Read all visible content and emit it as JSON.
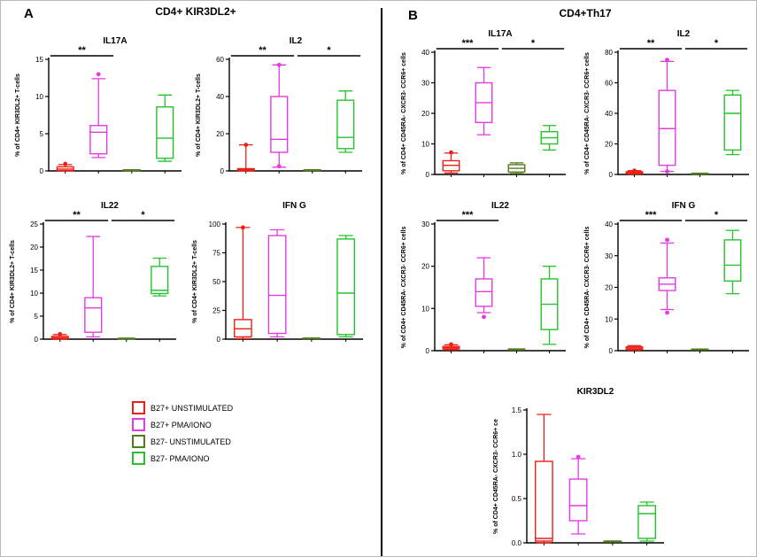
{
  "panels": {
    "a": {
      "letter": "A",
      "title": "CD4+ KIR3DL2+"
    },
    "b": {
      "letter": "B",
      "title": "CD4+Th17"
    }
  },
  "legend": {
    "items": [
      {
        "label": "B27+ UNSTIMULATED",
        "color": "#ed2015"
      },
      {
        "label": "B27+ PMA/IONO",
        "color": "#e43ae4"
      },
      {
        "label": "B27- UNSTIMULATED",
        "color": "#527d1e"
      },
      {
        "label": "B27- PMA/IONO",
        "color": "#25c32b"
      }
    ]
  },
  "chart_data": [
    {
      "type": "box",
      "panel": "A",
      "title": "IL17A",
      "ylabel": "% of CD4+ KIR3DL2+ T-cells",
      "ylim": [
        0,
        15
      ],
      "yticks": [
        {
          "v": 0,
          "l": "0"
        },
        {
          "v": 5,
          "l": "5"
        },
        {
          "v": 10,
          "l": "10"
        },
        {
          "v": 15,
          "l": "15"
        }
      ],
      "groups": [
        "B27+ UNSTIMULATED",
        "B27+ PMA/IONO",
        "B27- UNSTIMULATED",
        "B27- PMA/IONO"
      ],
      "boxes": [
        {
          "low": 0,
          "q1": 0.05,
          "med": 0.25,
          "q3": 0.55,
          "high": 0.85,
          "outliers": [
            0.95
          ]
        },
        {
          "low": 1.8,
          "q1": 2.3,
          "med": 5.2,
          "q3": 6.1,
          "high": 12.4,
          "outliers": [
            13.0
          ]
        },
        {
          "low": 0.05,
          "q1": 0.05,
          "med": 0.1,
          "q3": 0.15,
          "high": 0.15,
          "outliers": []
        },
        {
          "low": 1.3,
          "q1": 1.7,
          "med": 4.4,
          "q3": 8.6,
          "high": 10.2,
          "outliers": []
        }
      ],
      "sig": [
        {
          "a": 0,
          "b": 1,
          "label": "**"
        }
      ]
    },
    {
      "type": "box",
      "panel": "A",
      "title": "IL2",
      "ylabel": "% of CD4+ KIR3DL2+ T-cells",
      "ylim": [
        0,
        60
      ],
      "yticks": [
        {
          "v": 0,
          "l": "0"
        },
        {
          "v": 20,
          "l": "20"
        },
        {
          "v": 40,
          "l": "40"
        },
        {
          "v": 60,
          "l": "60"
        }
      ],
      "groups": [
        "B27+ UNSTIMULATED",
        "B27+ PMA/IONO",
        "B27- UNSTIMULATED",
        "B27- PMA/IONO"
      ],
      "boxes": [
        {
          "low": 0,
          "q1": 0.2,
          "med": 0.6,
          "q3": 1.2,
          "high": 14,
          "outliers": [
            14
          ]
        },
        {
          "low": 2,
          "q1": 10,
          "med": 17,
          "q3": 40,
          "high": 57,
          "outliers": [
            57,
            2.5
          ]
        },
        {
          "low": 0.3,
          "q1": 0.3,
          "med": 0.4,
          "q3": 0.6,
          "high": 0.6,
          "outliers": []
        },
        {
          "low": 10,
          "q1": 12,
          "med": 18,
          "q3": 38,
          "high": 43,
          "outliers": []
        }
      ],
      "sig": [
        {
          "a": 0,
          "b": 1,
          "label": "**"
        },
        {
          "a": 2,
          "b": 3,
          "label": "*"
        }
      ]
    },
    {
      "type": "box",
      "panel": "A",
      "title": "IL22",
      "ylabel": "% of CD4+ KIR3DL2+ T-cells",
      "ylim": [
        0,
        25
      ],
      "yticks": [
        {
          "v": 0,
          "l": "0"
        },
        {
          "v": 5,
          "l": "5"
        },
        {
          "v": 10,
          "l": "10"
        },
        {
          "v": 15,
          "l": "15"
        },
        {
          "v": 20,
          "l": "20"
        },
        {
          "v": 25,
          "l": "25"
        }
      ],
      "groups": [
        "B27+ UNSTIMULATED",
        "B27+ PMA/IONO",
        "B27- UNSTIMULATED",
        "B27- PMA/IONO"
      ],
      "boxes": [
        {
          "low": 0,
          "q1": 0.1,
          "med": 0.3,
          "q3": 0.6,
          "high": 1.0,
          "outliers": [
            1.1
          ]
        },
        {
          "low": 0.5,
          "q1": 1.5,
          "med": 6.8,
          "q3": 9.0,
          "high": 22.3,
          "outliers": []
        },
        {
          "low": 0.1,
          "q1": 0.1,
          "med": 0.15,
          "q3": 0.2,
          "high": 0.2,
          "outliers": []
        },
        {
          "low": 9.4,
          "q1": 9.9,
          "med": 10.6,
          "q3": 15.8,
          "high": 17.6,
          "outliers": []
        }
      ],
      "sig": [
        {
          "a": 0,
          "b": 1,
          "label": "**"
        },
        {
          "a": 2,
          "b": 3,
          "label": "*"
        }
      ]
    },
    {
      "type": "box",
      "panel": "A",
      "title": "IFN G",
      "ylabel": "% of CD4+ KIR3DL2+ T-cells",
      "ylim": [
        0,
        100
      ],
      "yticks": [
        {
          "v": 0,
          "l": "0"
        },
        {
          "v": 25,
          "l": "25"
        },
        {
          "v": 50,
          "l": "50"
        },
        {
          "v": 75,
          "l": "75"
        },
        {
          "v": 100,
          "l": "100"
        }
      ],
      "groups": [
        "B27+ UNSTIMULATED",
        "B27+ PMA/IONO",
        "B27- UNSTIMULATED",
        "B27- PMA/IONO"
      ],
      "boxes": [
        {
          "low": 0.5,
          "q1": 2,
          "med": 9,
          "q3": 17,
          "high": 97,
          "outliers": [
            97
          ]
        },
        {
          "low": 2,
          "q1": 5,
          "med": 38,
          "q3": 90,
          "high": 95,
          "outliers": []
        },
        {
          "low": 0.5,
          "q1": 0.5,
          "med": 0.8,
          "q3": 1,
          "high": 1,
          "outliers": []
        },
        {
          "low": 2,
          "q1": 4,
          "med": 40,
          "q3": 87,
          "high": 90,
          "outliers": []
        }
      ],
      "sig": []
    },
    {
      "type": "box",
      "panel": "B",
      "title": "IL17A",
      "ylabel": "% of CD4+ CD45RA- CXCR3- CCR6+ cells",
      "ylim": [
        0,
        40
      ],
      "yticks": [
        {
          "v": 0,
          "l": "0"
        },
        {
          "v": 10,
          "l": "10"
        },
        {
          "v": 20,
          "l": "20"
        },
        {
          "v": 30,
          "l": "30"
        },
        {
          "v": 40,
          "l": "40"
        }
      ],
      "groups": [
        "B27+ UNSTIMULATED",
        "B27+ PMA/IONO",
        "B27- UNSTIMULATED",
        "B27- PMA/IONO"
      ],
      "boxes": [
        {
          "low": 0.5,
          "q1": 1.2,
          "med": 3.0,
          "q3": 4.5,
          "high": 7,
          "outliers": [
            7.2
          ]
        },
        {
          "low": 13,
          "q1": 17,
          "med": 23.5,
          "q3": 30,
          "high": 35,
          "outliers": []
        },
        {
          "low": 0.3,
          "q1": 0.8,
          "med": 2.0,
          "q3": 3.2,
          "high": 3.8,
          "outliers": []
        },
        {
          "low": 8,
          "q1": 10,
          "med": 12,
          "q3": 14,
          "high": 16,
          "outliers": []
        }
      ],
      "sig": [
        {
          "a": 0,
          "b": 1,
          "label": "***"
        },
        {
          "a": 2,
          "b": 3,
          "label": "*"
        }
      ]
    },
    {
      "type": "box",
      "panel": "B",
      "title": "IL2",
      "ylabel": "% of CD4+ CD45RA- CXCR3- CCR6+ cells",
      "ylim": [
        0,
        80
      ],
      "yticks": [
        {
          "v": 0,
          "l": "0"
        },
        {
          "v": 20,
          "l": "20"
        },
        {
          "v": 40,
          "l": "40"
        },
        {
          "v": 60,
          "l": "60"
        },
        {
          "v": 80,
          "l": "80"
        }
      ],
      "groups": [
        "B27+ UNSTIMULATED",
        "B27+ PMA/IONO",
        "B27- UNSTIMULATED",
        "B27- PMA/IONO"
      ],
      "boxes": [
        {
          "low": 0.3,
          "q1": 0.6,
          "med": 1.2,
          "q3": 1.8,
          "high": 2.5,
          "outliers": [
            2.5
          ]
        },
        {
          "low": 2,
          "q1": 6,
          "med": 30,
          "q3": 55,
          "high": 74,
          "outliers": [
            75,
            2
          ]
        },
        {
          "low": 0.4,
          "q1": 0.4,
          "med": 0.6,
          "q3": 0.8,
          "high": 0.8,
          "outliers": []
        },
        {
          "low": 13,
          "q1": 16,
          "med": 40,
          "q3": 52,
          "high": 55,
          "outliers": []
        }
      ],
      "sig": [
        {
          "a": 0,
          "b": 1,
          "label": "**"
        },
        {
          "a": 2,
          "b": 3,
          "label": "*"
        }
      ]
    },
    {
      "type": "box",
      "panel": "B",
      "title": "IL22",
      "ylabel": "% of CD4+ CD45RA- CXCR3- CCR6+ cells",
      "ylim": [
        0,
        30
      ],
      "yticks": [
        {
          "v": 0,
          "l": "0"
        },
        {
          "v": 10,
          "l": "10"
        },
        {
          "v": 20,
          "l": "20"
        },
        {
          "v": 30,
          "l": "30"
        }
      ],
      "groups": [
        "B27+ UNSTIMULATED",
        "B27+ PMA/IONO",
        "B27- UNSTIMULATED",
        "B27- PMA/IONO"
      ],
      "boxes": [
        {
          "low": 0.2,
          "q1": 0.4,
          "med": 0.7,
          "q3": 1.0,
          "high": 1.4,
          "outliers": [
            1.5
          ]
        },
        {
          "low": 9,
          "q1": 10.5,
          "med": 14,
          "q3": 17,
          "high": 22,
          "outliers": [
            8
          ]
        },
        {
          "low": 0.2,
          "q1": 0.2,
          "med": 0.3,
          "q3": 0.4,
          "high": 0.4,
          "outliers": []
        },
        {
          "low": 1.5,
          "q1": 5,
          "med": 11,
          "q3": 17,
          "high": 20,
          "outliers": []
        }
      ],
      "sig": [
        {
          "a": 0,
          "b": 1,
          "label": "***"
        }
      ]
    },
    {
      "type": "box",
      "panel": "B",
      "title": "IFN G",
      "ylabel": "% of CD4+ CD45RA- CXCR3- CCR6+ cells",
      "ylim": [
        0,
        40
      ],
      "yticks": [
        {
          "v": 0,
          "l": "0"
        },
        {
          "v": 10,
          "l": "10"
        },
        {
          "v": 20,
          "l": "20"
        },
        {
          "v": 30,
          "l": "30"
        },
        {
          "v": 40,
          "l": "40"
        }
      ],
      "groups": [
        "B27+ UNSTIMULATED",
        "B27+ PMA/IONO",
        "B27- UNSTIMULATED",
        "B27- PMA/IONO"
      ],
      "boxes": [
        {
          "low": 0.2,
          "q1": 0.4,
          "med": 0.8,
          "q3": 1.2,
          "high": 1.6,
          "outliers": []
        },
        {
          "low": 13,
          "q1": 19,
          "med": 21,
          "q3": 23,
          "high": 34,
          "outliers": [
            35,
            12
          ]
        },
        {
          "low": 0.3,
          "q1": 0.3,
          "med": 0.4,
          "q3": 0.5,
          "high": 0.5,
          "outliers": []
        },
        {
          "low": 18,
          "q1": 22,
          "med": 27,
          "q3": 35,
          "high": 38,
          "outliers": []
        }
      ],
      "sig": [
        {
          "a": 0,
          "b": 1,
          "label": "***"
        },
        {
          "a": 2,
          "b": 3,
          "label": "*"
        }
      ]
    },
    {
      "type": "box",
      "panel": "B",
      "title": "KIR3DL2",
      "ylabel": "% of CD4+ CD45RA- CXCR3- CCR6+ ce",
      "ylim": [
        0,
        1.5
      ],
      "yticks": [
        {
          "v": 0,
          "l": "0.0"
        },
        {
          "v": 0.5,
          "l": "0.5"
        },
        {
          "v": 1.0,
          "l": "1.0"
        },
        {
          "v": 1.5,
          "l": "1.5"
        }
      ],
      "groups": [
        "B27+ UNSTIMULATED",
        "B27+ PMA/IONO",
        "B27- UNSTIMULATED",
        "B27- PMA/IONO"
      ],
      "boxes": [
        {
          "low": 0.0,
          "q1": 0.02,
          "med": 0.05,
          "q3": 0.92,
          "high": 1.45,
          "outliers": []
        },
        {
          "low": 0.1,
          "q1": 0.25,
          "med": 0.42,
          "q3": 0.72,
          "high": 0.95,
          "outliers": [
            0.97
          ]
        },
        {
          "low": 0.01,
          "q1": 0.01,
          "med": 0.015,
          "q3": 0.02,
          "high": 0.02,
          "outliers": []
        },
        {
          "low": 0.02,
          "q1": 0.05,
          "med": 0.33,
          "q3": 0.42,
          "high": 0.46,
          "outliers": []
        }
      ],
      "sig": []
    }
  ]
}
